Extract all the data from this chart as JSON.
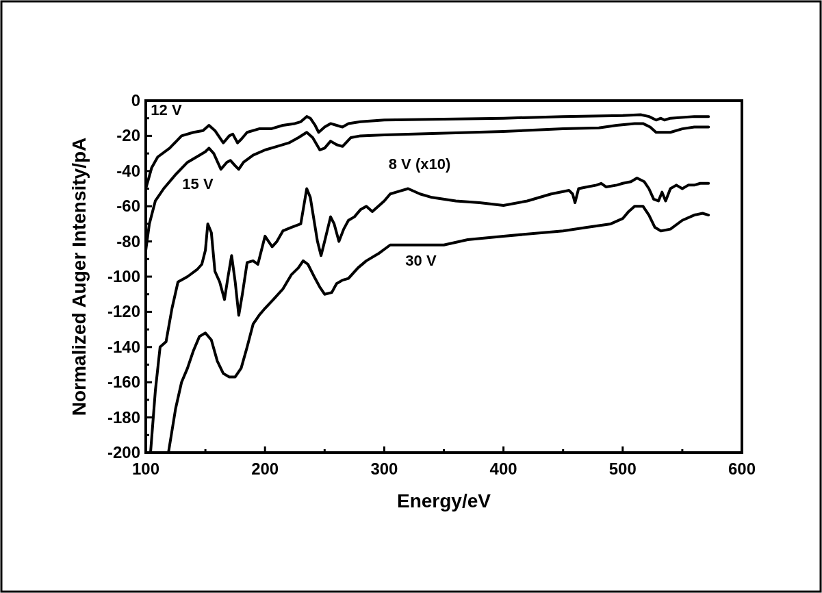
{
  "chart_data": {
    "type": "line",
    "xlabel": "Energy/eV",
    "ylabel": "Normalized Auger Intensity/pA",
    "xlim": [
      100,
      600
    ],
    "ylim": [
      -200,
      0
    ],
    "xticks": [
      100,
      {
        "value": 150,
        "label": null
      },
      200,
      {
        "value": 250,
        "label": null
      },
      300,
      {
        "value": 350,
        "label": null
      },
      400,
      {
        "value": 450,
        "label": null
      },
      500,
      {
        "value": 550,
        "label": null
      },
      600
    ],
    "yticks": [
      -200,
      {
        "value": -190,
        "label": null
      },
      -180,
      {
        "value": -170,
        "label": null
      },
      -160,
      {
        "value": -150,
        "label": null
      },
      -140,
      {
        "value": -130,
        "label": null
      },
      -120,
      {
        "value": -110,
        "label": null
      },
      -100,
      {
        "value": -90,
        "label": null
      },
      -80,
      {
        "value": -70,
        "label": null
      },
      -60,
      {
        "value": -50,
        "label": null
      },
      -40,
      {
        "value": -30,
        "label": null
      },
      -20,
      {
        "value": -10,
        "label": null
      },
      0
    ],
    "grid": false,
    "line_style": "solid",
    "marker": "none",
    "series": [
      {
        "name": "12 V",
        "color": "#000000",
        "x": [
          100,
          105,
          110,
          120,
          130,
          140,
          148,
          153,
          158,
          165,
          170,
          173,
          177,
          180,
          185,
          195,
          205,
          215,
          225,
          230,
          235,
          238,
          242,
          245,
          250,
          255,
          260,
          265,
          270,
          280,
          300,
          350,
          400,
          450,
          500,
          515,
          522,
          528,
          532,
          535,
          540,
          560,
          572
        ],
        "values": [
          -50,
          -38,
          -32,
          -27,
          -20,
          -18,
          -17,
          -14,
          -17,
          -24,
          -20,
          -19,
          -24,
          -22,
          -18,
          -16,
          -16,
          -14,
          -13,
          -12,
          -9,
          -10,
          -14,
          -18,
          -15,
          -13,
          -14,
          -15,
          -13,
          -12,
          -11,
          -10.5,
          -10,
          -9,
          -8.5,
          -8,
          -9,
          -11,
          -10,
          -11,
          -10,
          -9,
          -9
        ]
      },
      {
        "name": "15 V",
        "color": "#000000",
        "x": [
          100,
          103,
          108,
          115,
          125,
          135,
          145,
          150,
          153,
          157,
          163,
          168,
          171,
          175,
          178,
          182,
          190,
          200,
          210,
          220,
          228,
          235,
          240,
          246,
          250,
          255,
          260,
          265,
          272,
          280,
          300,
          350,
          400,
          450,
          480,
          495,
          510,
          517,
          523,
          528,
          540,
          550,
          560,
          572
        ],
        "values": [
          -85,
          -70,
          -57,
          -50,
          -42,
          -35,
          -31,
          -29,
          -27,
          -30,
          -39,
          -35,
          -34,
          -37,
          -39,
          -35,
          -31,
          -28,
          -26,
          -24,
          -21,
          -18,
          -21,
          -28,
          -27,
          -23,
          -25,
          -26,
          -21,
          -20,
          -19.5,
          -18.5,
          -17.5,
          -16,
          -15.5,
          -14,
          -13,
          -13,
          -15,
          -18,
          -18,
          -16,
          -15,
          -15
        ]
      },
      {
        "name": "8 V (x10)",
        "color": "#000000",
        "x": [
          104,
          108,
          112,
          117,
          122,
          127,
          135,
          143,
          147,
          150,
          152,
          155,
          158,
          162,
          166,
          169,
          172,
          175,
          178,
          181,
          185,
          190,
          194,
          200,
          203,
          206,
          210,
          215,
          222,
          230,
          235,
          238,
          244,
          247,
          250,
          255,
          258,
          262,
          266,
          270,
          275,
          280,
          285,
          290,
          295,
          300,
          305,
          310,
          320,
          330,
          340,
          360,
          380,
          400,
          420,
          440,
          455,
          458,
          460,
          463,
          470,
          478,
          482,
          486,
          495,
          500,
          507,
          512,
          518,
          522,
          526,
          530,
          533,
          536,
          540,
          545,
          550,
          555,
          560,
          565,
          572
        ],
        "values": [
          -200,
          -165,
          -140,
          -137,
          -118,
          -103,
          -100,
          -96,
          -93,
          -85,
          -70,
          -75,
          -97,
          -103,
          -113,
          -100,
          -88,
          -103,
          -122,
          -110,
          -92,
          -91,
          -93,
          -77,
          -80,
          -83,
          -80,
          -74,
          -72,
          -70,
          -50,
          -55,
          -80,
          -88,
          -80,
          -66,
          -70,
          -80,
          -73,
          -68,
          -66,
          -62,
          -60,
          -63,
          -60,
          -57,
          -53,
          -52,
          -50,
          -53,
          -55,
          -57,
          -58,
          -59.5,
          -57,
          -53,
          -51,
          -53,
          -58,
          -50,
          -49,
          -48,
          -47,
          -49,
          -48,
          -47,
          -46,
          -44,
          -46,
          -50,
          -56,
          -57,
          -52,
          -57,
          -50,
          -48,
          -50,
          -48,
          -48,
          -47,
          -47
        ]
      },
      {
        "name": "30 V",
        "color": "#000000",
        "x": [
          119,
          125,
          130,
          135,
          140,
          145,
          150,
          155,
          160,
          165,
          170,
          175,
          180,
          185,
          190,
          195,
          200,
          207,
          215,
          222,
          228,
          232,
          236,
          242,
          246,
          250,
          256,
          260,
          265,
          270,
          278,
          285,
          295,
          305,
          320,
          350,
          370,
          400,
          450,
          470,
          490,
          500,
          505,
          510,
          517,
          522,
          527,
          532,
          540,
          550,
          560,
          567,
          572
        ],
        "values": [
          -200,
          -175,
          -160,
          -152,
          -142,
          -134,
          -132,
          -136,
          -148,
          -155,
          -157,
          -157,
          -152,
          -140,
          -127,
          -122,
          -118,
          -113,
          -107,
          -99,
          -95,
          -91,
          -93,
          -101,
          -106,
          -110,
          -109,
          -104,
          -102,
          -101,
          -95,
          -91,
          -87,
          -82,
          -82,
          -82,
          -79,
          -77,
          -74,
          -72,
          -70,
          -67,
          -63,
          -60,
          -60,
          -65,
          -72,
          -74,
          -73,
          -68,
          -65,
          -64,
          -65
        ]
      }
    ]
  }
}
